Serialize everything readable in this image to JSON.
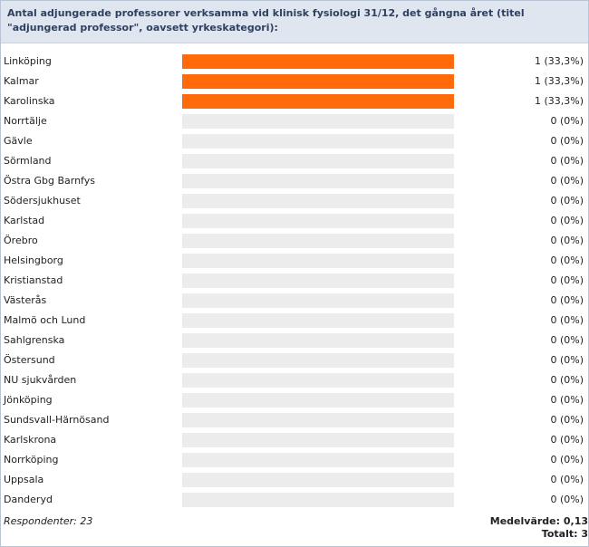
{
  "title": "Antal adjungerade professorer verksamma vid klinisk fysiologi 31/12, det gångna året (titel \"adjungerad professor\", oavsett yrkeskategori):",
  "colors": {
    "bar": "#ff6a0a",
    "track": "#ececec"
  },
  "chart_data": {
    "type": "bar",
    "orientation": "horizontal",
    "max_value": 1,
    "categories": [
      "Linköping",
      "Kalmar",
      "Karolinska",
      "Norrtälje",
      "Gävle",
      "Sörmland",
      "Östra Gbg Barnfys",
      "Södersjukhuset",
      "Karlstad",
      "Örebro",
      "Helsingborg",
      "Kristianstad",
      "Västerås",
      "Malmö och Lund",
      "Sahlgrenska",
      "Östersund",
      "NU sjukvården",
      "Jönköping",
      "Sundsvall-Härnösand",
      "Karlskrona",
      "Norrköping",
      "Uppsala",
      "Danderyd"
    ],
    "values": [
      1,
      1,
      1,
      0,
      0,
      0,
      0,
      0,
      0,
      0,
      0,
      0,
      0,
      0,
      0,
      0,
      0,
      0,
      0,
      0,
      0,
      0,
      0
    ],
    "value_labels": [
      "1 (33,3%)",
      "1 (33,3%)",
      "1 (33,3%)",
      "0 (0%)",
      "0 (0%)",
      "0 (0%)",
      "0 (0%)",
      "0 (0%)",
      "0 (0%)",
      "0 (0%)",
      "0 (0%)",
      "0 (0%)",
      "0 (0%)",
      "0 (0%)",
      "0 (0%)",
      "0 (0%)",
      "0 (0%)",
      "0 (0%)",
      "0 (0%)",
      "0 (0%)",
      "0 (0%)",
      "0 (0%)",
      "0 (0%)"
    ]
  },
  "footer": {
    "respondents": "Respondenter: 23",
    "mean": "Medelvärde: 0,13",
    "total": "Totalt: 3"
  }
}
